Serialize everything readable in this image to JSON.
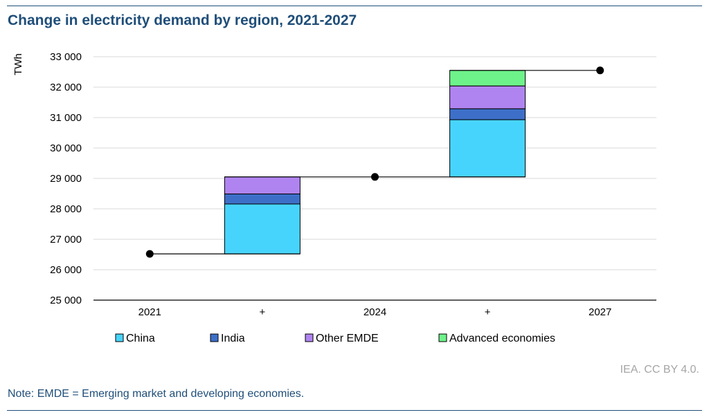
{
  "title": "Change in electricity demand by region, 2021-2027",
  "source": "IEA. CC BY 4.0.",
  "note": "Note: EMDE = Emerging market and developing economies.",
  "chart_data": {
    "type": "bar",
    "subtype": "waterfall-stacked",
    "ylabel": "TWh",
    "ylim": [
      25000,
      33000
    ],
    "y_ticks": [
      25000,
      26000,
      27000,
      28000,
      29000,
      30000,
      31000,
      32000,
      33000
    ],
    "y_tick_labels": [
      "25 000",
      "26 000",
      "27 000",
      "28 000",
      "29 000",
      "30 000",
      "31 000",
      "32 000",
      "33 000"
    ],
    "grid": true,
    "legend_position": "bottom",
    "categories": [
      "2021",
      "+",
      "2024",
      "+",
      "2027"
    ],
    "totals": [
      {
        "category_index": 0,
        "value": 26520
      },
      {
        "category_index": 2,
        "value": 29050
      },
      {
        "category_index": 4,
        "value": 32550
      }
    ],
    "series": [
      {
        "name": "China",
        "color": "#47d4fc",
        "values": [
          0,
          1640,
          0,
          1880,
          0
        ]
      },
      {
        "name": "India",
        "color": "#3d6fc8",
        "values": [
          0,
          330,
          0,
          360,
          0
        ]
      },
      {
        "name": "Other EMDE",
        "color": "#b084f0",
        "values": [
          0,
          560,
          0,
          750,
          0
        ]
      },
      {
        "name": "Advanced economies",
        "color": "#6ef28a",
        "values": [
          0,
          0,
          0,
          510,
          0
        ]
      }
    ]
  }
}
